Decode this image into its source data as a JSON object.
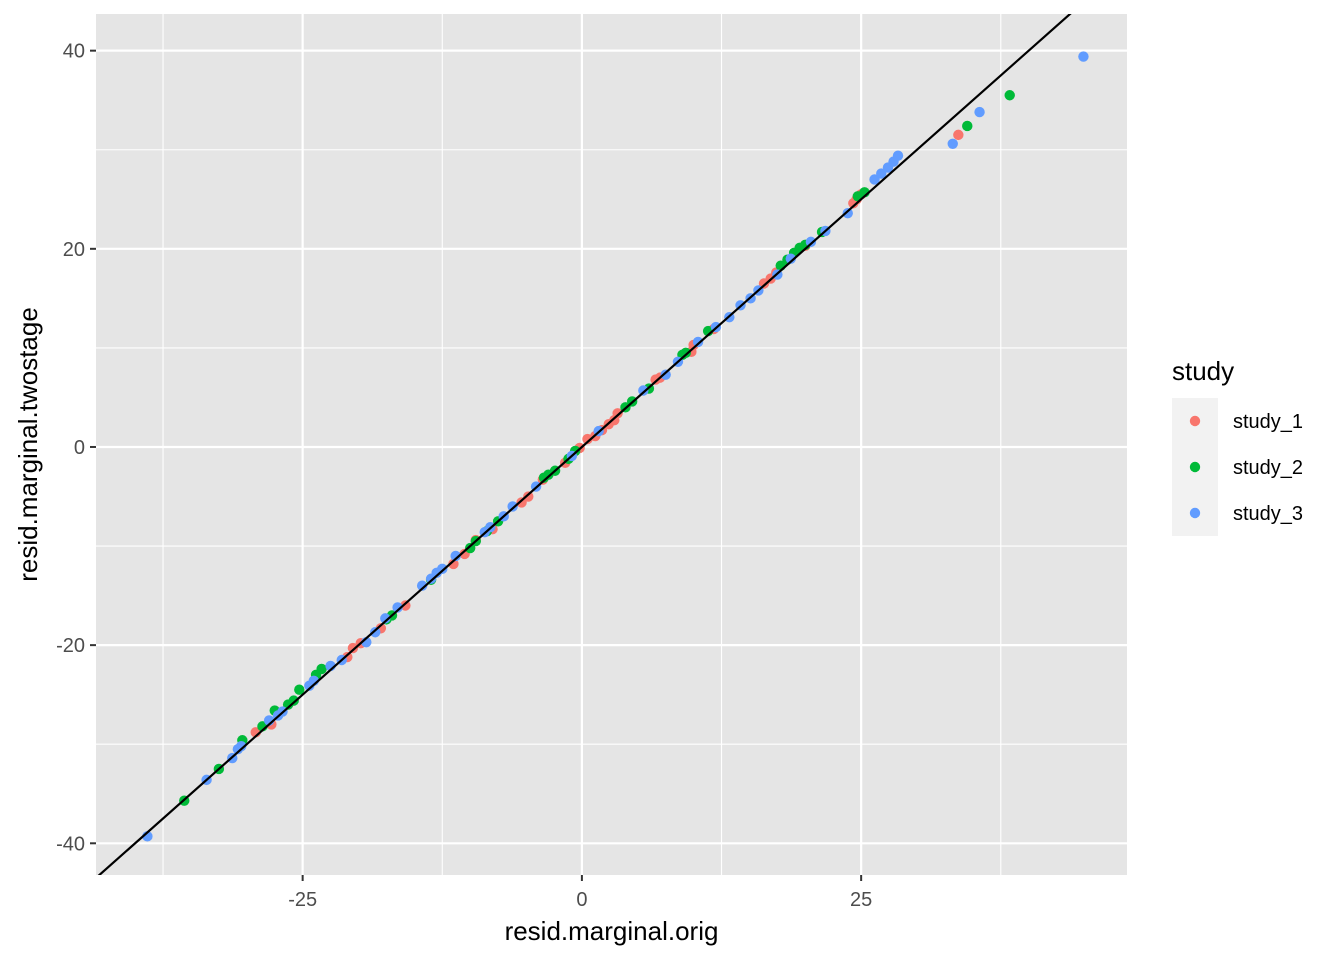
{
  "chart_data": {
    "type": "scatter",
    "title": "",
    "xlabel": "resid.marginal.orig",
    "ylabel": "resid.marginal.twostage",
    "xlim": [
      -43.5,
      48.8
    ],
    "ylim": [
      -43.2,
      43.7
    ],
    "x_ticks": [
      -25,
      0,
      25
    ],
    "x_tick_labels": [
      "-25",
      "0",
      "25"
    ],
    "y_ticks": [
      -40,
      -20,
      0,
      20,
      40
    ],
    "y_tick_labels": [
      "-40",
      "-20",
      "0",
      "20",
      "40"
    ],
    "grid": true,
    "panel_background": "#e5e5e5",
    "grid_color": "#ffffff",
    "reference_line": {
      "intercept": 0,
      "slope": 1,
      "color": "#000000"
    },
    "legend": {
      "title": "study",
      "position": "right",
      "entries": [
        {
          "label": "study_1",
          "color": "#f8766d"
        },
        {
          "label": "study_2",
          "color": "#00ba38"
        },
        {
          "label": "study_3",
          "color": "#619cff"
        }
      ]
    },
    "series": [
      {
        "name": "study_1",
        "color": "#f8766d",
        "x": [
          -29.2,
          -27.8,
          -21.0,
          -20.5,
          -19.8,
          -18.0,
          -15.8,
          -11.5,
          -10.5,
          -9.5,
          -8.0,
          -5.4,
          -4.8,
          -3.5,
          -1.5,
          -0.2,
          0.5,
          1.2,
          1.8,
          2.4,
          2.9,
          3.2,
          6.6,
          7.0,
          9.8,
          10.0,
          11.8,
          16.3,
          16.9,
          17.4,
          20.0,
          24.3,
          24.6,
          25.0,
          33.7
        ],
        "y": [
          -28.8,
          -28.0,
          -21.2,
          -20.3,
          -19.8,
          -18.3,
          -16.0,
          -11.8,
          -10.8,
          -9.4,
          -8.3,
          -5.6,
          -5.0,
          -3.3,
          -1.6,
          -0.1,
          0.8,
          1.1,
          1.7,
          2.3,
          2.7,
          3.4,
          6.8,
          7.0,
          9.6,
          10.3,
          11.9,
          16.5,
          17.0,
          17.6,
          20.3,
          24.6,
          25.0,
          25.5,
          31.5
        ]
      },
      {
        "name": "study_2",
        "color": "#00ba38",
        "x": [
          -35.6,
          -32.5,
          -30.4,
          -28.6,
          -27.5,
          -26.3,
          -25.8,
          -25.3,
          -23.8,
          -23.3,
          -17.5,
          -17.0,
          -13.5,
          -10.0,
          -9.5,
          -8.5,
          -7.5,
          -3.4,
          -3.0,
          -2.4,
          -1.2,
          -0.6,
          3.9,
          4.5,
          6.0,
          9.0,
          9.3,
          11.3,
          17.8,
          18.4,
          19.0,
          19.5,
          20.0,
          21.5,
          24.7,
          25.3,
          34.5,
          38.3
        ],
        "y": [
          -35.7,
          -32.5,
          -29.6,
          -28.2,
          -26.6,
          -26.0,
          -25.6,
          -24.5,
          -23.0,
          -22.4,
          -17.4,
          -17.0,
          -13.4,
          -10.2,
          -9.5,
          -8.5,
          -7.5,
          -3.1,
          -2.8,
          -2.4,
          -1.2,
          -0.4,
          4.0,
          4.6,
          5.9,
          9.3,
          9.5,
          11.7,
          18.3,
          18.9,
          19.6,
          20.1,
          20.4,
          21.7,
          25.3,
          25.7,
          32.4,
          35.5
        ]
      },
      {
        "name": "study_3",
        "color": "#619cff",
        "x": [
          -38.9,
          -33.6,
          -31.3,
          -30.8,
          -30.5,
          -28.0,
          -27.2,
          -26.8,
          -24.4,
          -24.0,
          -22.5,
          -21.5,
          -19.3,
          -18.5,
          -17.6,
          -16.5,
          -14.3,
          -13.5,
          -13.0,
          -12.5,
          -11.3,
          -8.7,
          -8.2,
          -7.0,
          -6.2,
          -4.1,
          -0.9,
          1.5,
          5.5,
          7.5,
          8.6,
          10.4,
          12.0,
          13.2,
          14.2,
          15.1,
          15.8,
          17.5,
          18.7,
          20.5,
          21.8,
          23.8,
          26.2,
          26.8,
          27.4,
          27.9,
          28.3,
          33.2,
          35.6,
          44.9
        ],
        "y": [
          -39.3,
          -33.6,
          -31.4,
          -30.5,
          -30.2,
          -27.6,
          -27.1,
          -26.7,
          -24.1,
          -23.6,
          -22.1,
          -21.5,
          -19.7,
          -18.7,
          -17.3,
          -16.2,
          -14.0,
          -13.3,
          -12.7,
          -12.3,
          -11.0,
          -8.6,
          -8.1,
          -7.0,
          -6.0,
          -4.0,
          -0.9,
          1.6,
          5.7,
          7.3,
          8.6,
          10.6,
          12.1,
          13.1,
          14.3,
          15.0,
          15.8,
          17.4,
          19.0,
          20.7,
          21.8,
          23.6,
          27.0,
          27.6,
          28.2,
          28.8,
          29.4,
          30.6,
          33.8,
          39.4
        ]
      }
    ]
  }
}
